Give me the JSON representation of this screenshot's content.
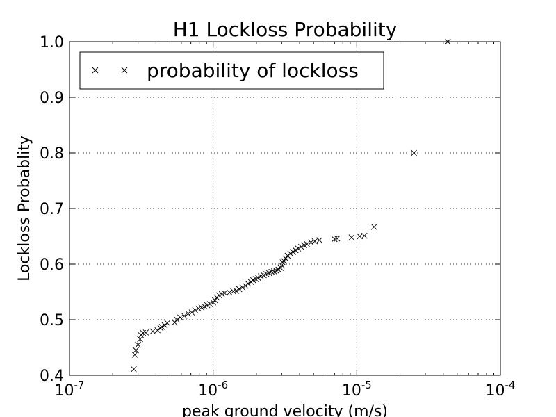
{
  "chart_data": {
    "type": "scatter",
    "title": "H1 Lockloss Probability",
    "xlabel": "peak ground velocity (m/s)",
    "ylabel": "Lockloss Probablity",
    "xscale": "log",
    "xlim": [
      1e-07,
      0.0001
    ],
    "ylim": [
      0.4,
      1.0
    ],
    "grid": true,
    "legend_position": "top-left",
    "x_tick_labels": [
      {
        "base": "10",
        "exp": "-7"
      },
      {
        "base": "10",
        "exp": "-6"
      },
      {
        "base": "10",
        "exp": "-5"
      },
      {
        "base": "10",
        "exp": "-4"
      }
    ],
    "y_tick_labels": [
      "0.4",
      "0.5",
      "0.6",
      "0.7",
      "0.8",
      "0.9",
      "1.0"
    ],
    "marker": "x",
    "marker_color": "#000000",
    "series": [
      {
        "name": "probability of lockloss",
        "x": [
          2.8e-07,
          2.85e-07,
          2.9e-07,
          3e-07,
          3.1e-07,
          3.15e-07,
          3.25e-07,
          3.4e-07,
          3.8e-07,
          4.1e-07,
          4.3e-07,
          4.4e-07,
          4.6e-07,
          4.8e-07,
          5.4e-07,
          5.6e-07,
          5.9e-07,
          6.3e-07,
          6.7e-07,
          7.1e-07,
          7.5e-07,
          7.9e-07,
          8.3e-07,
          8.7e-07,
          9.1e-07,
          9.5e-07,
          1e-06,
          1.03e-06,
          1.06e-06,
          1.1e-06,
          1.15e-06,
          1.2e-06,
          1.3e-06,
          1.38e-06,
          1.45e-06,
          1.52e-06,
          1.6e-06,
          1.68e-06,
          1.75e-06,
          1.83e-06,
          1.9e-06,
          1.98e-06,
          2.06e-06,
          2.15e-06,
          2.25e-06,
          2.35e-06,
          2.45e-06,
          2.55e-06,
          2.65e-06,
          2.75e-06,
          2.85e-06,
          2.95e-06,
          3e-06,
          3.05e-06,
          3.1e-06,
          3.2e-06,
          3.3e-06,
          3.45e-06,
          3.6e-06,
          3.75e-06,
          3.9e-06,
          4.1e-06,
          4.3e-06,
          4.5e-06,
          4.8e-06,
          5.1e-06,
          5.5e-06,
          7e-06,
          7.3e-06,
          9.2e-06,
          1.05e-05,
          1.13e-05,
          1.32e-05,
          2.5e-05,
          4.3e-05
        ],
        "y": [
          0.411,
          0.437,
          0.445,
          0.455,
          0.465,
          0.472,
          0.476,
          0.477,
          0.479,
          0.481,
          0.485,
          0.487,
          0.49,
          0.494,
          0.495,
          0.5,
          0.504,
          0.507,
          0.511,
          0.513,
          0.517,
          0.52,
          0.522,
          0.524,
          0.526,
          0.528,
          0.531,
          0.535,
          0.54,
          0.544,
          0.546,
          0.548,
          0.549,
          0.551,
          0.552,
          0.555,
          0.558,
          0.561,
          0.565,
          0.568,
          0.571,
          0.573,
          0.575,
          0.578,
          0.58,
          0.582,
          0.584,
          0.586,
          0.587,
          0.588,
          0.59,
          0.593,
          0.598,
          0.603,
          0.606,
          0.61,
          0.615,
          0.619,
          0.622,
          0.625,
          0.628,
          0.631,
          0.634,
          0.636,
          0.639,
          0.641,
          0.643,
          0.645,
          0.646,
          0.648,
          0.65,
          0.651,
          0.667,
          0.8,
          1.0
        ]
      }
    ]
  }
}
